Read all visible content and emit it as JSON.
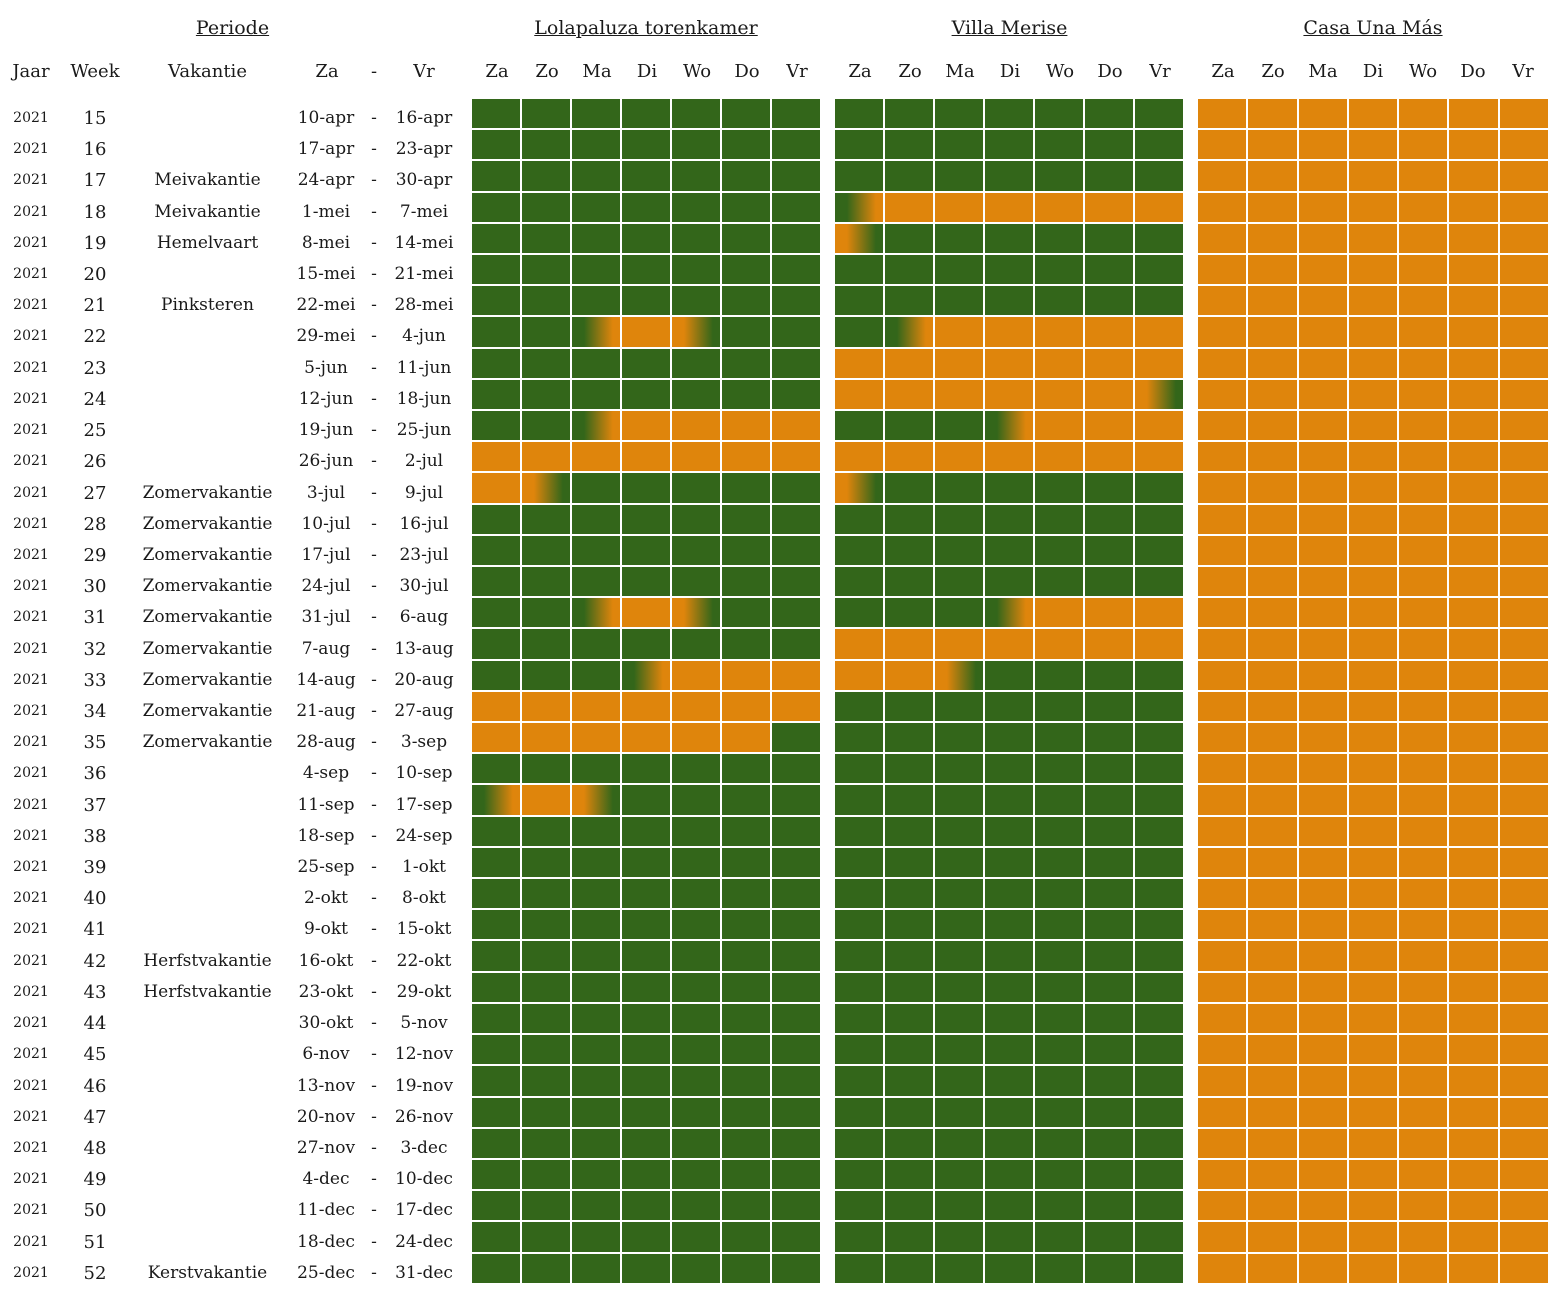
{
  "headers": {
    "periode": "Periode",
    "houses": [
      "Lolapaluza torenkamer",
      "Villa Merise",
      "Casa Una Más"
    ],
    "jaar": "Jaar",
    "week": "Week",
    "vakantie": "Vakantie",
    "za": "Za",
    "dash": "-",
    "vr": "Vr",
    "days": [
      "Za",
      "Zo",
      "Ma",
      "Di",
      "Wo",
      "Do",
      "Vr"
    ]
  },
  "colors": {
    "vrij": "#33661a",
    "bezet": "#df850c"
  },
  "rows": [
    {
      "jaar": "2021",
      "week": "15",
      "vakantie": "",
      "van": "10-apr",
      "tot": "16-apr"
    },
    {
      "jaar": "2021",
      "week": "16",
      "vakantie": "",
      "van": "17-apr",
      "tot": "23-apr"
    },
    {
      "jaar": "2021",
      "week": "17",
      "vakantie": "Meivakantie",
      "van": "24-apr",
      "tot": "30-apr"
    },
    {
      "jaar": "2021",
      "week": "18",
      "vakantie": "Meivakantie",
      "van": "1-mei",
      "tot": "7-mei"
    },
    {
      "jaar": "2021",
      "week": "19",
      "vakantie": "Hemelvaart",
      "van": "8-mei",
      "tot": "14-mei"
    },
    {
      "jaar": "2021",
      "week": "20",
      "vakantie": "",
      "van": "15-mei",
      "tot": "21-mei"
    },
    {
      "jaar": "2021",
      "week": "21",
      "vakantie": "Pinksteren",
      "van": "22-mei",
      "tot": "28-mei"
    },
    {
      "jaar": "2021",
      "week": "22",
      "vakantie": "",
      "van": "29-mei",
      "tot": "4-jun"
    },
    {
      "jaar": "2021",
      "week": "23",
      "vakantie": "",
      "van": "5-jun",
      "tot": "11-jun"
    },
    {
      "jaar": "2021",
      "week": "24",
      "vakantie": "",
      "van": "12-jun",
      "tot": "18-jun"
    },
    {
      "jaar": "2021",
      "week": "25",
      "vakantie": "",
      "van": "19-jun",
      "tot": "25-jun"
    },
    {
      "jaar": "2021",
      "week": "26",
      "vakantie": "",
      "van": "26-jun",
      "tot": "2-jul"
    },
    {
      "jaar": "2021",
      "week": "27",
      "vakantie": "Zomervakantie",
      "van": "3-jul",
      "tot": "9-jul"
    },
    {
      "jaar": "2021",
      "week": "28",
      "vakantie": "Zomervakantie",
      "van": "10-jul",
      "tot": "16-jul"
    },
    {
      "jaar": "2021",
      "week": "29",
      "vakantie": "Zomervakantie",
      "van": "17-jul",
      "tot": "23-jul"
    },
    {
      "jaar": "2021",
      "week": "30",
      "vakantie": "Zomervakantie",
      "van": "24-jul",
      "tot": "30-jul"
    },
    {
      "jaar": "2021",
      "week": "31",
      "vakantie": "Zomervakantie",
      "van": "31-jul",
      "tot": "6-aug"
    },
    {
      "jaar": "2021",
      "week": "32",
      "vakantie": "Zomervakantie",
      "van": "7-aug",
      "tot": "13-aug"
    },
    {
      "jaar": "2021",
      "week": "33",
      "vakantie": "Zomervakantie",
      "van": "14-aug",
      "tot": "20-aug"
    },
    {
      "jaar": "2021",
      "week": "34",
      "vakantie": "Zomervakantie",
      "van": "21-aug",
      "tot": "27-aug"
    },
    {
      "jaar": "2021",
      "week": "35",
      "vakantie": "Zomervakantie",
      "van": "28-aug",
      "tot": "3-sep"
    },
    {
      "jaar": "2021",
      "week": "36",
      "vakantie": "",
      "van": "4-sep",
      "tot": "10-sep"
    },
    {
      "jaar": "2021",
      "week": "37",
      "vakantie": "",
      "van": "11-sep",
      "tot": "17-sep"
    },
    {
      "jaar": "2021",
      "week": "38",
      "vakantie": "",
      "van": "18-sep",
      "tot": "24-sep"
    },
    {
      "jaar": "2021",
      "week": "39",
      "vakantie": "",
      "van": "25-sep",
      "tot": "1-okt"
    },
    {
      "jaar": "2021",
      "week": "40",
      "vakantie": "",
      "van": "2-okt",
      "tot": "8-okt"
    },
    {
      "jaar": "2021",
      "week": "41",
      "vakantie": "",
      "van": "9-okt",
      "tot": "15-okt"
    },
    {
      "jaar": "2021",
      "week": "42",
      "vakantie": "Herfstvakantie",
      "van": "16-okt",
      "tot": "22-okt"
    },
    {
      "jaar": "2021",
      "week": "43",
      "vakantie": "Herfstvakantie",
      "van": "23-okt",
      "tot": "29-okt"
    },
    {
      "jaar": "2021",
      "week": "44",
      "vakantie": "",
      "van": "30-okt",
      "tot": "5-nov"
    },
    {
      "jaar": "2021",
      "week": "45",
      "vakantie": "",
      "van": "6-nov",
      "tot": "12-nov"
    },
    {
      "jaar": "2021",
      "week": "46",
      "vakantie": "",
      "van": "13-nov",
      "tot": "19-nov"
    },
    {
      "jaar": "2021",
      "week": "47",
      "vakantie": "",
      "van": "20-nov",
      "tot": "26-nov"
    },
    {
      "jaar": "2021",
      "week": "48",
      "vakantie": "",
      "van": "27-nov",
      "tot": "3-dec"
    },
    {
      "jaar": "2021",
      "week": "49",
      "vakantie": "",
      "van": "4-dec",
      "tot": "10-dec"
    },
    {
      "jaar": "2021",
      "week": "50",
      "vakantie": "",
      "van": "11-dec",
      "tot": "17-dec"
    },
    {
      "jaar": "2021",
      "week": "51",
      "vakantie": "",
      "van": "18-dec",
      "tot": "24-dec"
    },
    {
      "jaar": "2021",
      "week": "52",
      "vakantie": "Kerstvakantie",
      "van": "25-dec",
      "tot": "31-dec"
    }
  ],
  "availability": {
    "lolapaluza": [
      "ggggggg",
      "ggggggg",
      "ggggggg",
      "ggggggg",
      "ggggggg",
      "ggggggg",
      "ggggggg",
      "ggbocgg",
      "ggggggg",
      "ggggggg",
      "ggboooo",
      "ooooooo",
      "ocggggg",
      "ggggggg",
      "ggggggg",
      "ggggggg",
      "ggbocgg",
      "ggggggg",
      "gggbooo",
      "ooooooo",
      "oooooog",
      "ggggggg",
      "boxgggg",
      "ggggggg",
      "ggggggg",
      "ggggggg",
      "ggggggg",
      "ggggggg",
      "ggggggg",
      "ggggggg",
      "ggggggg",
      "ggggggg",
      "ggggggg",
      "ggggggg",
      "ggggggg",
      "ggggggg",
      "ggggggg",
      "ggggggg"
    ],
    "villa_merise": [
      "ggggggg",
      "ggggggg",
      "ggggggg",
      "boooooo",
      "xgggggg",
      "ggggggg",
      "ggggggg",
      "gbooooo",
      "ooooooo",
      "oooooox",
      "gggbooo",
      "ooooooo",
      "xgggggg",
      "ggggggg",
      "ggggggg",
      "ggggggg",
      "gggbooo",
      "ooooooo",
      "ooxgggg",
      "ggggggg",
      "ggggggg",
      "ggggggg",
      "ggggggg",
      "ggggggg",
      "ggggggg",
      "ggggggg",
      "ggggggg",
      "ggggggg",
      "ggggggg",
      "ggggggg",
      "ggggggg",
      "ggggggg",
      "ggggggg",
      "ggggggg",
      "ggggggg",
      "ggggggg",
      "ggggggg",
      "ggggggg"
    ],
    "casa_una_mas": "all-booked"
  }
}
